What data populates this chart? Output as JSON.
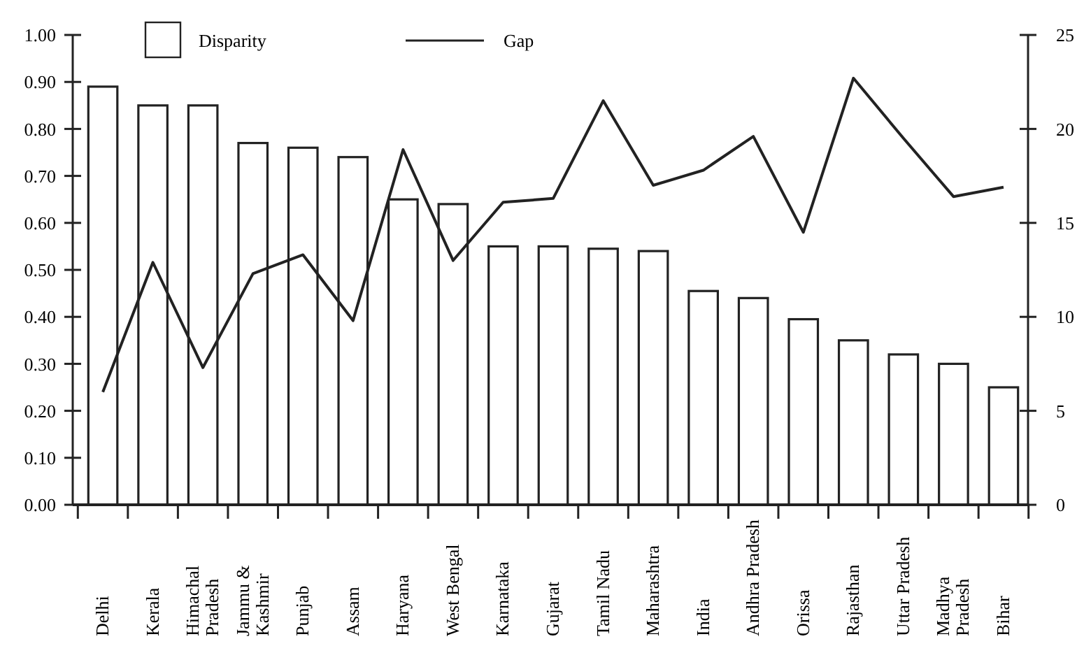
{
  "chart_data": {
    "type": "bar",
    "categories": [
      "Delhi",
      "Kerala",
      "Himachal\nPradesh",
      "Jammu &\nKashmir",
      "Punjab",
      "Assam",
      "Haryana",
      "West Bengal",
      "Karnataka",
      "Gujarat",
      "Tamil Nadu",
      "Maharashtra",
      "India",
      "Andhra Pradesh",
      "Orissa",
      "Rajasthan",
      "Uttar Pradesh",
      "Madhya\nPradesh",
      "Bihar"
    ],
    "series": [
      {
        "name": "Disparity",
        "color": "#ffffff",
        "values": [
          0.89,
          0.85,
          0.85,
          0.77,
          0.76,
          0.74,
          0.65,
          0.64,
          0.55,
          0.55,
          0.545,
          0.54,
          0.455,
          0.44,
          0.395,
          0.35,
          0.32,
          0.3,
          0.25
        ]
      },
      {
        "name": "Gap",
        "type": "line",
        "axis": "y2",
        "color": "#222222",
        "values": [
          6,
          12.9,
          7.3,
          12.3,
          13.3,
          9.8,
          18.9,
          13.0,
          16.1,
          16.3,
          21.5,
          17.0,
          17.8,
          19.6,
          14.5,
          22.7,
          19.5,
          16.4,
          16.9
        ]
      }
    ],
    "ylim": [
      0,
      1
    ],
    "yticks": [
      {
        "value": 0,
        "label": "0.00"
      },
      {
        "value": 0.1,
        "label": "0.10"
      },
      {
        "value": 0.2,
        "label": "0.20"
      },
      {
        "value": 0.3,
        "label": "0.30"
      },
      {
        "value": 0.4,
        "label": "0.40"
      },
      {
        "value": 0.5,
        "label": "0.50"
      },
      {
        "value": 0.6,
        "label": "0.60"
      },
      {
        "value": 0.7,
        "label": "0.70"
      },
      {
        "value": 0.8,
        "label": "0.80"
      },
      {
        "value": 0.9,
        "label": "0.90"
      },
      {
        "value": 1,
        "label": "1.00"
      }
    ],
    "y2lim": [
      0,
      25
    ],
    "y2ticks": [
      0,
      5,
      10,
      15,
      20,
      25
    ],
    "grid": false,
    "legend": "top",
    "marker": "none",
    "line_style": "solid"
  }
}
